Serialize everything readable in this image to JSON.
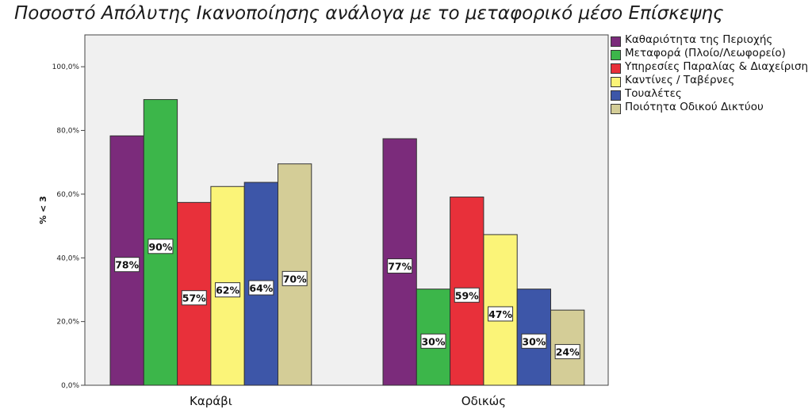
{
  "chart_data": {
    "type": "bar",
    "title": "Ποσοστό Απόλυτης Ικανοποίησης ανάλογα με το μεταφορικό μέσο Επίσκεψης",
    "ylabel": "% < 3",
    "xlabel": "",
    "ylim": [
      0,
      110
    ],
    "yticks": [
      "0,0%",
      "20,0%",
      "40,0%",
      "60,0%",
      "80,0%",
      "100,0%"
    ],
    "ytick_values": [
      0,
      20,
      40,
      60,
      80,
      100
    ],
    "categories": [
      "Καράβι",
      "Οδικώς"
    ],
    "grid": false,
    "legend_position": "right",
    "series": [
      {
        "name": "Καθαριότητα της Περιοχής",
        "color": "#7b2b7b",
        "values": [
          78.3,
          77.4
        ],
        "labels": [
          "78%",
          "77%"
        ]
      },
      {
        "name": "Μεταφορά (Πλοίο/Λεωφορείο)",
        "color": "#3cb64a",
        "values": [
          89.7,
          30.2
        ],
        "labels": [
          "90%",
          "30%"
        ]
      },
      {
        "name": "Υπηρεσίες Παραλίας & Διαχείριση",
        "color": "#e8303a",
        "values": [
          57.4,
          59.1
        ],
        "labels": [
          "57%",
          "59%"
        ]
      },
      {
        "name": "Καντίνες / Ταβέρνες",
        "color": "#fbf478",
        "values": [
          62.4,
          47.3
        ],
        "labels": [
          "62%",
          "47%"
        ]
      },
      {
        "name": "Τουαλέτες",
        "color": "#3d56a8",
        "values": [
          63.7,
          30.2
        ],
        "labels": [
          "64%",
          "30%"
        ]
      },
      {
        "name": "Ποιότητα Οδικού Δικτύου",
        "color": "#d4cd97",
        "values": [
          69.5,
          23.6
        ],
        "labels": [
          "70%",
          "24%"
        ]
      }
    ]
  }
}
